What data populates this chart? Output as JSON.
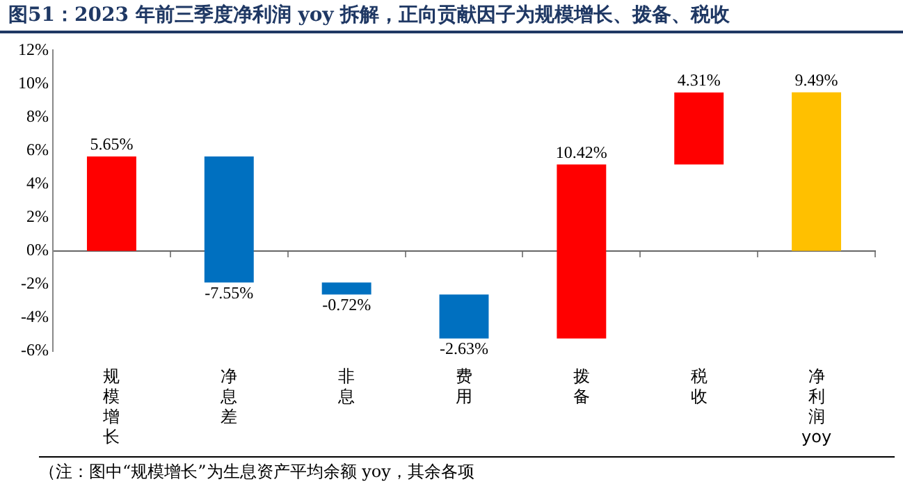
{
  "chart_data": {
    "type": "bar",
    "title": "图51：2023 年前三季度净利润 yoy 拆解，正向贡献因子为规模增长、拨备、税收",
    "categories": [
      "规模增长",
      "净息差",
      "非息",
      "费用",
      "拨备",
      "税收",
      "净利润yoy"
    ],
    "values": [
      5.65,
      -7.55,
      -0.72,
      -2.63,
      10.42,
      4.31,
      9.49
    ],
    "base": [
      0,
      5.65,
      -1.9,
      -2.62,
      -5.25,
      5.17,
      0
    ],
    "colors": [
      "#ff0000",
      "#0070c0",
      "#0070c0",
      "#0070c0",
      "#ff0000",
      "#ff0000",
      "#ffc000"
    ],
    "value_labels": [
      "5.65%",
      "-7.55%",
      "-0.72%",
      "-2.63%",
      "10.42%",
      "4.31%",
      "9.49%"
    ],
    "ylim": [
      -6,
      12
    ],
    "yticks": [
      {
        "value": -6,
        "label": "-6%"
      },
      {
        "value": -4,
        "label": "-4%"
      },
      {
        "value": -2,
        "label": "-2%"
      },
      {
        "value": 0,
        "label": "0%"
      },
      {
        "value": 2,
        "label": "2%"
      },
      {
        "value": 4,
        "label": "4%"
      },
      {
        "value": 6,
        "label": "6%"
      },
      {
        "value": 8,
        "label": "8%"
      },
      {
        "value": 10,
        "label": "10%"
      },
      {
        "value": 12,
        "label": "12%"
      }
    ],
    "legend": false,
    "annotations": [
      "（注：图中“规模增长”为生息资产平均余额 yoy，其余各项"
    ]
  }
}
